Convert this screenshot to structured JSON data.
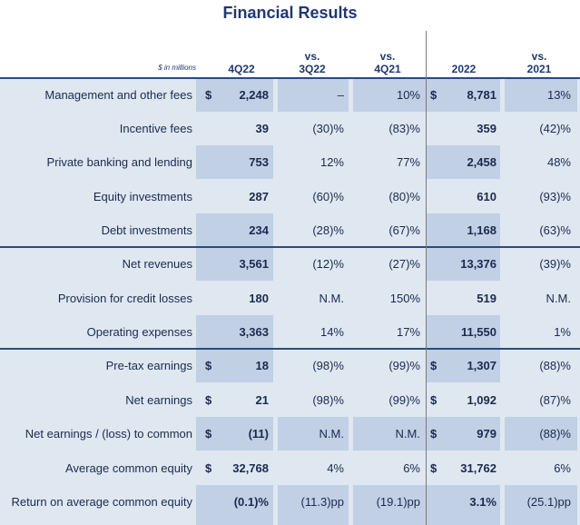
{
  "title": "Financial Results",
  "header": {
    "units": "$ in millions",
    "col1": "4Q22",
    "col2_top": "vs.",
    "col2_bottom": "3Q22",
    "col3_top": "vs.",
    "col3_bottom": "4Q21",
    "col4": "2022",
    "col5_top": "vs.",
    "col5_bottom": "2021"
  },
  "rows": [
    {
      "label": "Management and other fees",
      "dollar1": "$",
      "q": "2,248",
      "vs_q": "–",
      "vs_y": "10%",
      "dollar2": "$",
      "fy": "8,781",
      "vs_fy": "13%"
    },
    {
      "label": "Incentive fees",
      "dollar1": "",
      "q": "39",
      "vs_q": "(30)%",
      "vs_y": "(83)%",
      "dollar2": "",
      "fy": "359",
      "vs_fy": "(42)%"
    },
    {
      "label": "Private banking and lending",
      "dollar1": "",
      "q": "753",
      "vs_q": "12%",
      "vs_y": "77%",
      "dollar2": "",
      "fy": "2,458",
      "vs_fy": "48%"
    },
    {
      "label": "Equity investments",
      "dollar1": "",
      "q": "287",
      "vs_q": "(60)%",
      "vs_y": "(80)%",
      "dollar2": "",
      "fy": "610",
      "vs_fy": "(93)%"
    },
    {
      "label": "Debt investments",
      "dollar1": "",
      "q": "234",
      "vs_q": "(28)%",
      "vs_y": "(67)%",
      "dollar2": "",
      "fy": "1,168",
      "vs_fy": "(63)%"
    },
    {
      "label": "Net revenues",
      "dollar1": "",
      "q": "3,561",
      "vs_q": "(12)%",
      "vs_y": "(27)%",
      "dollar2": "",
      "fy": "13,376",
      "vs_fy": "(39)%"
    },
    {
      "label": "Provision for credit losses",
      "dollar1": "",
      "q": "180",
      "vs_q": "N.M.",
      "vs_y": "150%",
      "dollar2": "",
      "fy": "519",
      "vs_fy": "N.M."
    },
    {
      "label": "Operating expenses",
      "dollar1": "",
      "q": "3,363",
      "vs_q": "14%",
      "vs_y": "17%",
      "dollar2": "",
      "fy": "11,550",
      "vs_fy": "1%"
    },
    {
      "label": "Pre-tax earnings",
      "dollar1": "$",
      "q": "18",
      "vs_q": "(98)%",
      "vs_y": "(99)%",
      "dollar2": "$",
      "fy": "1,307",
      "vs_fy": "(88)%"
    },
    {
      "label": "Net earnings",
      "dollar1": "$",
      "q": "21",
      "vs_q": "(98)%",
      "vs_y": "(99)%",
      "dollar2": "$",
      "fy": "1,092",
      "vs_fy": "(87)%"
    },
    {
      "label": "Net earnings / (loss) to common",
      "dollar1": "$",
      "q": "(11)",
      "vs_q": "N.M.",
      "vs_y": "N.M.",
      "dollar2": "$",
      "fy": "979",
      "vs_fy": "(88)%"
    },
    {
      "label": "Average common equity",
      "dollar1": "$",
      "q": "32,768",
      "vs_q": "4%",
      "vs_y": "6%",
      "dollar2": "$",
      "fy": "31,762",
      "vs_fy": "6%"
    },
    {
      "label": "Return on average common equity",
      "dollar1": "",
      "q": "(0.1)%",
      "vs_q": "(11.3)pp",
      "vs_y": "(19.1)pp",
      "dollar2": "",
      "fy": "3.1%",
      "vs_fy": "(25.1)pp"
    }
  ],
  "colors": {
    "row_bg": "#dfe7f1",
    "shade": "#c1d0e4",
    "title": "#1f3870"
  }
}
